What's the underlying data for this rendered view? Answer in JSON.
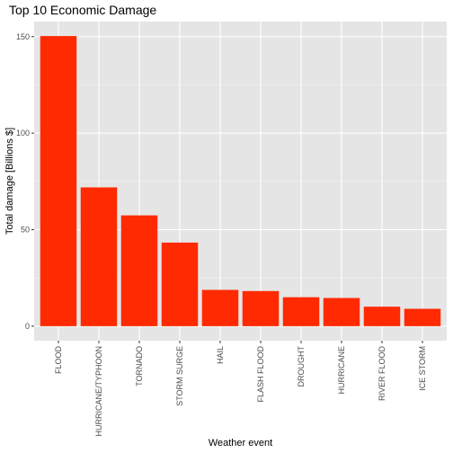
{
  "chart_data": {
    "type": "bar",
    "title": "Top 10 Economic Damage",
    "xlabel": "Weather event",
    "ylabel": "Total damage [Billions $]",
    "categories": [
      "FLOOD",
      "HURRICANE/TYPHOON",
      "TORNADO",
      "STORM SURGE",
      "HAIL",
      "FLASH FLOOD",
      "DROUGHT",
      "HURRICANE",
      "RIVER FLOOD",
      "ICE STORM"
    ],
    "values": [
      150.3,
      71.9,
      57.4,
      43.3,
      18.8,
      18.2,
      15.0,
      14.6,
      10.1,
      9.0
    ],
    "yticks": [
      0,
      50,
      100,
      150
    ],
    "ylim": [
      -7.5,
      157.8
    ],
    "bar_color": "#ff2a00",
    "panel_color": "#e5e5e5",
    "grid": true,
    "legend": "none"
  }
}
